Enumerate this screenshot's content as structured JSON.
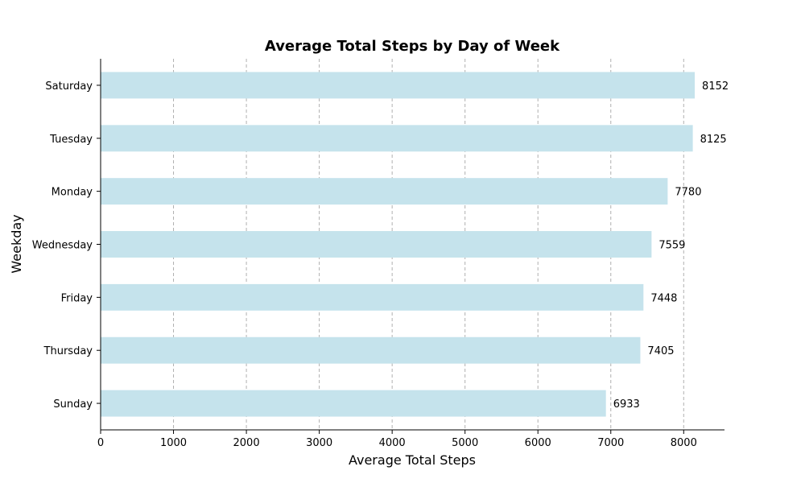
{
  "chart_data": {
    "type": "bar",
    "orientation": "horizontal",
    "title": "Average Total Steps by Day of Week",
    "xlabel": "Average Total Steps",
    "ylabel": "Weekday",
    "categories": [
      "Saturday",
      "Tuesday",
      "Monday",
      "Wednesday",
      "Friday",
      "Thursday",
      "Sunday"
    ],
    "values": [
      8152,
      8125,
      7780,
      7559,
      7448,
      7405,
      6933
    ],
    "data_labels": [
      "8152",
      "8125",
      "7780",
      "7559",
      "7448",
      "7405",
      "6933"
    ],
    "xlim": [
      0,
      8560
    ],
    "xticks": [
      0,
      1000,
      2000,
      3000,
      4000,
      5000,
      6000,
      7000,
      8000
    ],
    "xtick_labels": [
      "0",
      "1000",
      "2000",
      "3000",
      "4000",
      "5000",
      "6000",
      "7000",
      "8000"
    ],
    "grid": "x-dashed",
    "bar_color": "#c5e3ec",
    "legend": "none"
  }
}
